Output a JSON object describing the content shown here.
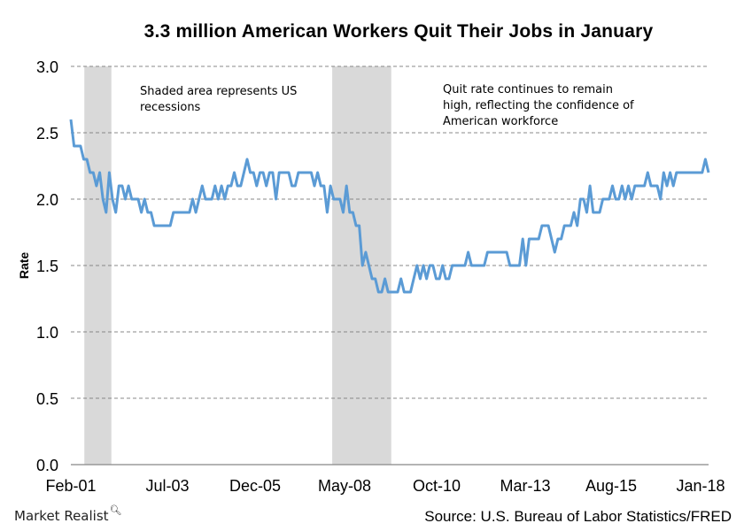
{
  "chart_data": {
    "type": "line",
    "title": "3.3 million American Workers Quit Their Jobs in January",
    "xlabel": "",
    "ylabel": "Rate",
    "ylim": [
      0,
      3.0
    ],
    "yticks": [
      "0.0",
      "0.5",
      "1.0",
      "1.5",
      "2.0",
      "2.5",
      "3.0"
    ],
    "xticks": [
      "Feb-01",
      "Jul-03",
      "Dec-05",
      "May-08",
      "Oct-10",
      "Mar-13",
      "Aug-15",
      "Jan-18"
    ],
    "grid": "horizontal dashed",
    "legend": "none",
    "series_color": "#5B9BD5",
    "recession_shading_color": "#D9D9D9",
    "recessions": [
      {
        "start": "Mar-01",
        "end": "Nov-01"
      },
      {
        "start": "Dec-07",
        "end": "Jun-09"
      }
    ],
    "annotations": [
      "Shaded area represents US recessions",
      "Quit rate continues to remain high, reflecting the confidence of American workforce"
    ],
    "series": [
      {
        "name": "Quit rate",
        "x_start": "Feb-01",
        "x_end": "Jan-18",
        "points_month_index_value": [
          [
            0,
            2.6
          ],
          [
            1,
            2.4
          ],
          [
            2,
            2.4
          ],
          [
            3,
            2.4
          ],
          [
            4,
            2.3
          ],
          [
            5,
            2.3
          ],
          [
            6,
            2.2
          ],
          [
            7,
            2.2
          ],
          [
            8,
            2.1
          ],
          [
            9,
            2.2
          ],
          [
            10,
            2.0
          ],
          [
            11,
            1.9
          ],
          [
            12,
            2.2
          ],
          [
            13,
            2.0
          ],
          [
            14,
            1.9
          ],
          [
            15,
            2.1
          ],
          [
            16,
            2.1
          ],
          [
            17,
            2.0
          ],
          [
            18,
            2.1
          ],
          [
            19,
            2.0
          ],
          [
            20,
            2.0
          ],
          [
            21,
            2.0
          ],
          [
            22,
            1.9
          ],
          [
            23,
            2.0
          ],
          [
            24,
            1.9
          ],
          [
            25,
            1.9
          ],
          [
            26,
            1.8
          ],
          [
            27,
            1.8
          ],
          [
            28,
            1.8
          ],
          [
            29,
            1.8
          ],
          [
            30,
            1.8
          ],
          [
            31,
            1.8
          ],
          [
            32,
            1.9
          ],
          [
            33,
            1.9
          ],
          [
            34,
            1.9
          ],
          [
            35,
            1.9
          ],
          [
            36,
            1.9
          ],
          [
            37,
            1.9
          ],
          [
            38,
            2.0
          ],
          [
            39,
            1.9
          ],
          [
            40,
            2.0
          ],
          [
            41,
            2.1
          ],
          [
            42,
            2.0
          ],
          [
            43,
            2.0
          ],
          [
            44,
            2.0
          ],
          [
            45,
            2.1
          ],
          [
            46,
            2.0
          ],
          [
            47,
            2.1
          ],
          [
            48,
            2.0
          ],
          [
            49,
            2.1
          ],
          [
            50,
            2.1
          ],
          [
            51,
            2.2
          ],
          [
            52,
            2.1
          ],
          [
            53,
            2.1
          ],
          [
            54,
            2.2
          ],
          [
            55,
            2.3
          ],
          [
            56,
            2.2
          ],
          [
            57,
            2.2
          ],
          [
            58,
            2.1
          ],
          [
            59,
            2.2
          ],
          [
            60,
            2.2
          ],
          [
            61,
            2.1
          ],
          [
            62,
            2.2
          ],
          [
            63,
            2.2
          ],
          [
            64,
            2.0
          ],
          [
            65,
            2.2
          ],
          [
            66,
            2.2
          ],
          [
            67,
            2.2
          ],
          [
            68,
            2.2
          ],
          [
            69,
            2.1
          ],
          [
            70,
            2.1
          ],
          [
            71,
            2.2
          ],
          [
            72,
            2.2
          ],
          [
            73,
            2.2
          ],
          [
            74,
            2.2
          ],
          [
            75,
            2.2
          ],
          [
            76,
            2.1
          ],
          [
            77,
            2.2
          ],
          [
            78,
            2.1
          ],
          [
            79,
            2.1
          ],
          [
            80,
            1.9
          ],
          [
            81,
            2.1
          ],
          [
            82,
            2.0
          ],
          [
            83,
            2.0
          ],
          [
            84,
            2.0
          ],
          [
            85,
            1.9
          ],
          [
            86,
            2.1
          ],
          [
            87,
            1.9
          ],
          [
            88,
            1.9
          ],
          [
            89,
            1.8
          ],
          [
            90,
            1.8
          ],
          [
            91,
            1.5
          ],
          [
            92,
            1.6
          ],
          [
            93,
            1.5
          ],
          [
            94,
            1.4
          ],
          [
            95,
            1.4
          ],
          [
            96,
            1.3
          ],
          [
            97,
            1.3
          ],
          [
            98,
            1.4
          ],
          [
            99,
            1.3
          ],
          [
            100,
            1.3
          ],
          [
            101,
            1.3
          ],
          [
            102,
            1.3
          ],
          [
            103,
            1.4
          ],
          [
            104,
            1.3
          ],
          [
            105,
            1.3
          ],
          [
            106,
            1.3
          ],
          [
            107,
            1.4
          ],
          [
            108,
            1.5
          ],
          [
            109,
            1.4
          ],
          [
            110,
            1.5
          ],
          [
            111,
            1.4
          ],
          [
            112,
            1.5
          ],
          [
            113,
            1.5
          ],
          [
            114,
            1.4
          ],
          [
            115,
            1.4
          ],
          [
            116,
            1.5
          ],
          [
            117,
            1.4
          ],
          [
            118,
            1.4
          ],
          [
            119,
            1.5
          ],
          [
            120,
            1.5
          ],
          [
            121,
            1.5
          ],
          [
            122,
            1.5
          ],
          [
            123,
            1.5
          ],
          [
            124,
            1.6
          ],
          [
            125,
            1.5
          ],
          [
            126,
            1.5
          ],
          [
            127,
            1.5
          ],
          [
            128,
            1.5
          ],
          [
            129,
            1.5
          ],
          [
            130,
            1.6
          ],
          [
            131,
            1.6
          ],
          [
            132,
            1.6
          ],
          [
            133,
            1.6
          ],
          [
            134,
            1.6
          ],
          [
            135,
            1.6
          ],
          [
            136,
            1.6
          ],
          [
            137,
            1.5
          ],
          [
            138,
            1.5
          ],
          [
            139,
            1.5
          ],
          [
            140,
            1.5
          ],
          [
            141,
            1.7
          ],
          [
            142,
            1.5
          ],
          [
            143,
            1.7
          ],
          [
            144,
            1.7
          ],
          [
            145,
            1.7
          ],
          [
            146,
            1.7
          ],
          [
            147,
            1.8
          ],
          [
            148,
            1.8
          ],
          [
            149,
            1.8
          ],
          [
            150,
            1.7
          ],
          [
            151,
            1.6
          ],
          [
            152,
            1.7
          ],
          [
            153,
            1.7
          ],
          [
            154,
            1.8
          ],
          [
            155,
            1.8
          ],
          [
            156,
            1.8
          ],
          [
            157,
            1.9
          ],
          [
            158,
            1.8
          ],
          [
            159,
            2.0
          ],
          [
            160,
            2.0
          ],
          [
            161,
            1.9
          ],
          [
            162,
            2.1
          ],
          [
            163,
            1.9
          ],
          [
            164,
            1.9
          ],
          [
            165,
            1.9
          ],
          [
            166,
            2.0
          ],
          [
            167,
            2.0
          ],
          [
            168,
            2.0
          ],
          [
            169,
            2.1
          ],
          [
            170,
            2.0
          ],
          [
            171,
            2.0
          ],
          [
            172,
            2.1
          ],
          [
            173,
            2.0
          ],
          [
            174,
            2.1
          ],
          [
            175,
            2.0
          ],
          [
            176,
            2.1
          ],
          [
            177,
            2.1
          ],
          [
            178,
            2.1
          ],
          [
            179,
            2.1
          ],
          [
            180,
            2.2
          ],
          [
            181,
            2.1
          ],
          [
            182,
            2.1
          ],
          [
            183,
            2.1
          ],
          [
            184,
            2.0
          ],
          [
            185,
            2.2
          ],
          [
            186,
            2.1
          ],
          [
            187,
            2.2
          ],
          [
            188,
            2.1
          ],
          [
            189,
            2.2
          ],
          [
            190,
            2.2
          ],
          [
            191,
            2.2
          ],
          [
            192,
            2.2
          ],
          [
            193,
            2.2
          ],
          [
            194,
            2.2
          ],
          [
            195,
            2.2
          ],
          [
            196,
            2.2
          ],
          [
            197,
            2.2
          ],
          [
            198,
            2.3
          ],
          [
            199,
            2.2
          ]
        ]
      }
    ]
  },
  "footer": {
    "brand": "Market Realist",
    "source": "Source: U.S. Bureau of Labor Statistics/FRED"
  }
}
